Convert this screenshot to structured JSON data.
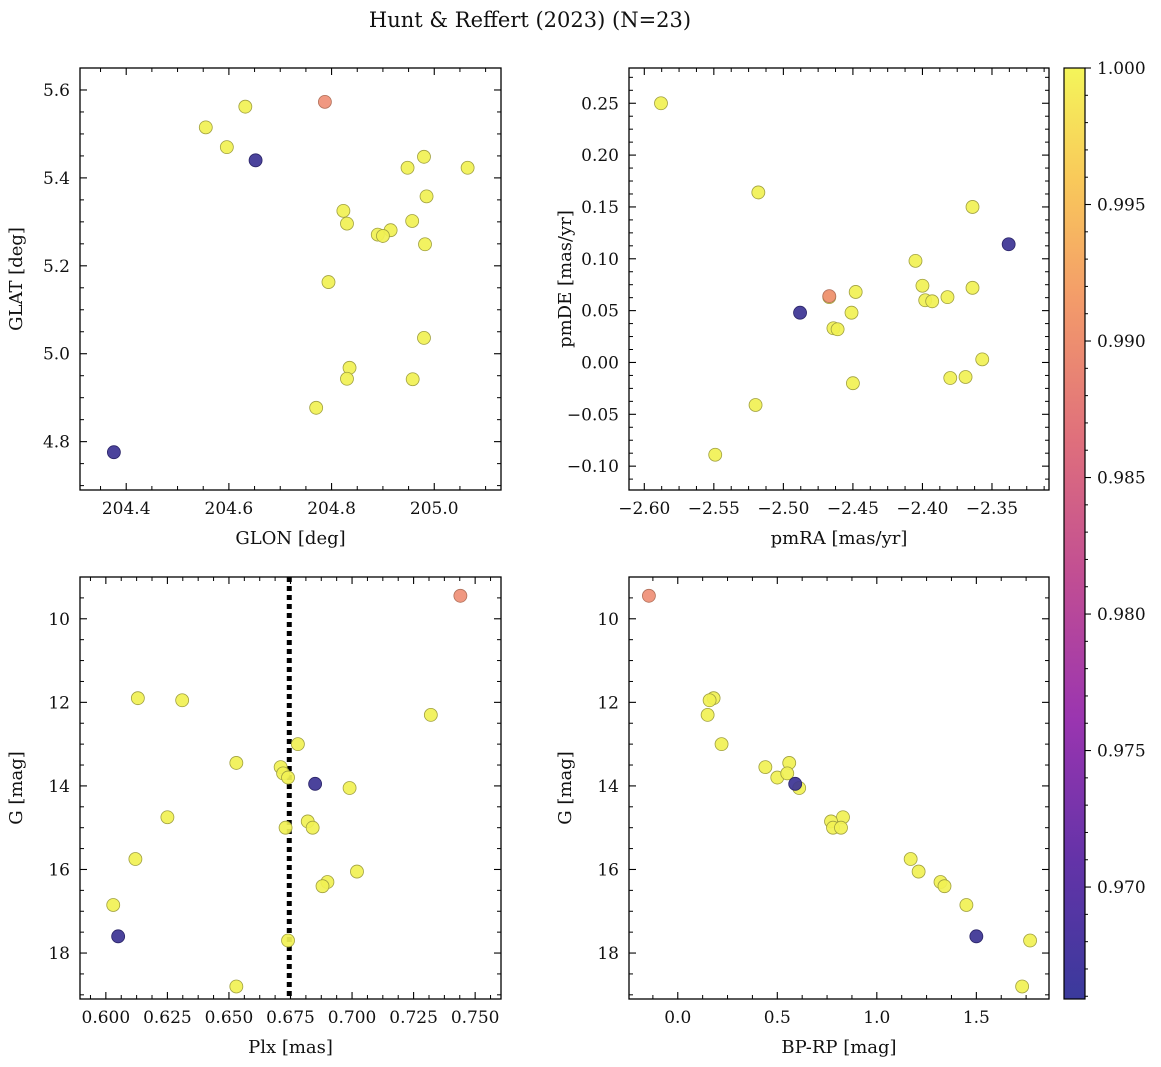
{
  "figure": {
    "title": "Hunt & Reffert (2023) (N=23)"
  },
  "colorbar": {
    "colormap": "plasma",
    "vmin": 0.9659,
    "vmax": 1.0,
    "ticks": [
      0.97,
      0.975,
      0.98,
      0.985,
      0.99,
      0.995,
      1.0
    ],
    "tick_labels": [
      "0.970",
      "0.975",
      "0.980",
      "0.985",
      "0.990",
      "0.995",
      "1.000"
    ]
  },
  "chart_data": [
    {
      "type": "scatter",
      "id": "glon_glat",
      "xlabel": "GLON [deg]",
      "ylabel": "GLAT [deg]",
      "xlim": [
        204.31,
        205.13
      ],
      "ylim": [
        4.69,
        5.65
      ],
      "xticks": [
        204.4,
        204.6,
        204.8,
        205.0
      ],
      "xtick_labels": [
        "204.4",
        "204.6",
        "204.8",
        "205.0"
      ],
      "yticks": [
        4.8,
        5.0,
        5.2,
        5.4,
        5.6
      ],
      "ytick_labels": [
        "4.8",
        "5.0",
        "5.2",
        "5.4",
        "5.6"
      ],
      "x": [
        204.555,
        204.632,
        204.596,
        204.787,
        204.652,
        204.376,
        204.948,
        204.98,
        205.065,
        204.985,
        204.823,
        204.83,
        204.957,
        204.915,
        204.89,
        204.9,
        204.982,
        204.794,
        204.98,
        204.835,
        204.83,
        204.958,
        204.77
      ],
      "y": [
        5.515,
        5.562,
        5.47,
        5.573,
        5.44,
        4.776,
        5.423,
        5.448,
        5.423,
        5.358,
        5.325,
        5.296,
        5.302,
        5.281,
        5.271,
        5.268,
        5.249,
        5.163,
        5.036,
        4.968,
        4.943,
        4.942,
        4.877
      ],
      "membership": [
        1.0,
        1.0,
        1.0,
        0.988,
        0.966,
        0.966,
        1.0,
        1.0,
        1.0,
        1.0,
        1.0,
        1.0,
        1.0,
        1.0,
        1.0,
        1.0,
        1.0,
        1.0,
        1.0,
        1.0,
        1.0,
        1.0,
        1.0
      ]
    },
    {
      "type": "scatter",
      "id": "pmra_pmde",
      "xlabel": "pmRA [mas/yr]",
      "ylabel": "pmDE [mas/yr]",
      "xlim": [
        -2.611,
        -2.309
      ],
      "ylim": [
        -0.123,
        0.284
      ],
      "xticks": [
        -2.6,
        -2.55,
        -2.5,
        -2.45,
        -2.4,
        -2.35
      ],
      "xtick_labels": [
        "−2.60",
        "−2.55",
        "−2.50",
        "−2.45",
        "−2.40",
        "−2.35"
      ],
      "yticks": [
        -0.1,
        -0.05,
        0.0,
        0.05,
        0.1,
        0.15,
        0.2,
        0.25
      ],
      "ytick_labels": [
        "−0.10",
        "−0.05",
        "0.00",
        "0.05",
        "0.10",
        "0.15",
        "0.20",
        "0.25"
      ],
      "x": [
        -2.588,
        -2.518,
        -2.364,
        -2.338,
        -2.405,
        -2.4,
        -2.364,
        -2.382,
        -2.448,
        -2.467,
        -2.467,
        -2.398,
        -2.393,
        -2.488,
        -2.451,
        -2.464,
        -2.461,
        -2.357,
        -2.45,
        -2.369,
        -2.38,
        -2.52,
        -2.549
      ],
      "y": [
        0.25,
        0.164,
        0.15,
        0.114,
        0.098,
        0.074,
        0.072,
        0.063,
        0.068,
        0.064,
        0.063,
        0.06,
        0.059,
        0.048,
        0.048,
        0.033,
        0.032,
        0.003,
        -0.02,
        -0.014,
        -0.015,
        -0.041,
        -0.089
      ],
      "membership": [
        1.0,
        1.0,
        1.0,
        0.966,
        1.0,
        1.0,
        1.0,
        1.0,
        1.0,
        0.988,
        1.0,
        1.0,
        1.0,
        0.966,
        1.0,
        1.0,
        1.0,
        1.0,
        1.0,
        1.0,
        1.0,
        1.0,
        1.0
      ]
    },
    {
      "type": "scatter",
      "id": "plx_g",
      "xlabel": "Plx [mas]",
      "ylabel": "G [mag]",
      "xlim": [
        0.5895,
        0.7605
      ],
      "ylim": [
        19.1,
        9.0
      ],
      "y_inverted": true,
      "xticks": [
        0.6,
        0.625,
        0.65,
        0.675,
        0.7,
        0.725,
        0.75
      ],
      "xtick_labels": [
        "0.600",
        "0.625",
        "0.650",
        "0.675",
        "0.700",
        "0.725",
        "0.750"
      ],
      "yticks": [
        10,
        12,
        14,
        16,
        18
      ],
      "ytick_labels": [
        "10",
        "12",
        "14",
        "16",
        "18"
      ],
      "reference_line": {
        "x": 0.6745,
        "style": "dotted"
      },
      "x": [
        0.744,
        0.613,
        0.631,
        0.732,
        0.678,
        0.653,
        0.671,
        0.672,
        0.674,
        0.685,
        0.699,
        0.625,
        0.682,
        0.673,
        0.684,
        0.612,
        0.702,
        0.69,
        0.688,
        0.603,
        0.605,
        0.674,
        0.653
      ],
      "y": [
        9.45,
        11.9,
        11.95,
        12.3,
        13.0,
        13.45,
        13.55,
        13.7,
        13.8,
        13.95,
        14.05,
        14.75,
        14.85,
        15.0,
        15.0,
        15.75,
        16.05,
        16.3,
        16.4,
        16.85,
        17.6,
        17.7,
        18.8
      ],
      "membership": [
        0.988,
        1.0,
        1.0,
        1.0,
        1.0,
        1.0,
        1.0,
        1.0,
        1.0,
        0.966,
        1.0,
        1.0,
        1.0,
        1.0,
        1.0,
        1.0,
        1.0,
        1.0,
        1.0,
        1.0,
        0.966,
        1.0,
        1.0
      ]
    },
    {
      "type": "scatter",
      "id": "bprp_g",
      "xlabel": "BP-RP [mag]",
      "ylabel": "G [mag]",
      "xlim": [
        -0.245,
        1.865
      ],
      "ylim": [
        19.1,
        9.0
      ],
      "y_inverted": true,
      "xticks": [
        0.0,
        0.5,
        1.0,
        1.5
      ],
      "xtick_labels": [
        "0.0",
        "0.5",
        "1.0",
        "1.5"
      ],
      "yticks": [
        10,
        12,
        14,
        16,
        18
      ],
      "ytick_labels": [
        "10",
        "12",
        "14",
        "16",
        "18"
      ],
      "x": [
        -0.145,
        0.18,
        0.16,
        0.15,
        0.22,
        0.44,
        0.56,
        0.5,
        0.55,
        0.59,
        0.61,
        0.83,
        0.77,
        0.78,
        0.82,
        1.17,
        1.21,
        1.32,
        1.34,
        1.45,
        1.5,
        1.77,
        1.73
      ],
      "y": [
        9.45,
        11.9,
        11.95,
        12.3,
        13.0,
        13.55,
        13.45,
        13.8,
        13.7,
        13.95,
        14.05,
        14.75,
        14.85,
        15.0,
        15.0,
        15.75,
        16.05,
        16.3,
        16.4,
        16.85,
        17.6,
        17.7,
        18.8
      ],
      "membership": [
        0.988,
        1.0,
        1.0,
        1.0,
        1.0,
        1.0,
        1.0,
        1.0,
        1.0,
        0.966,
        1.0,
        1.0,
        1.0,
        1.0,
        1.0,
        1.0,
        1.0,
        1.0,
        1.0,
        1.0,
        0.966,
        1.0,
        1.0
      ]
    }
  ]
}
